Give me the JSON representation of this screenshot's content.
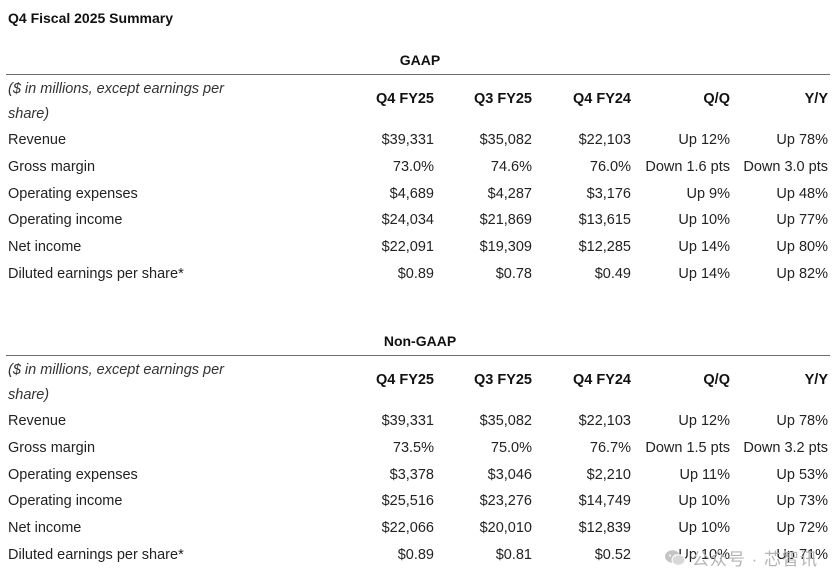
{
  "page_title": "Q4 Fiscal 2025 Summary",
  "columns": [
    "Q4 FY25",
    "Q3 FY25",
    "Q4 FY24",
    "Q/Q",
    "Y/Y"
  ],
  "sections": [
    {
      "title": "GAAP",
      "header_label": "($ in millions, except earnings per share)",
      "rows": [
        {
          "label": "Revenue",
          "values": [
            "$39,331",
            "$35,082",
            "$22,103",
            "Up 12%",
            "Up 78%"
          ]
        },
        {
          "label": "Gross margin",
          "values": [
            "73.0%",
            "74.6%",
            "76.0%",
            "Down 1.6 pts",
            "Down 3.0 pts"
          ]
        },
        {
          "label": "Operating expenses",
          "values": [
            "$4,689",
            "$4,287",
            "$3,176",
            "Up 9%",
            "Up 48%"
          ]
        },
        {
          "label": "Operating income",
          "values": [
            "$24,034",
            "$21,869",
            "$13,615",
            "Up 10%",
            "Up 77%"
          ]
        },
        {
          "label": "Net income",
          "values": [
            "$22,091",
            "$19,309",
            "$12,285",
            "Up 14%",
            "Up 80%"
          ]
        },
        {
          "label": "Diluted earnings per share*",
          "values": [
            "$0.89",
            "$0.78",
            "$0.49",
            "Up 14%",
            "Up 82%"
          ]
        }
      ]
    },
    {
      "title": "Non-GAAP",
      "header_label": "($ in millions, except earnings per share)",
      "rows": [
        {
          "label": "Revenue",
          "values": [
            "$39,331",
            "$35,082",
            "$22,103",
            "Up 12%",
            "Up 78%"
          ]
        },
        {
          "label": "Gross margin",
          "values": [
            "73.5%",
            "75.0%",
            "76.7%",
            "Down 1.5 pts",
            "Down 3.2 pts"
          ]
        },
        {
          "label": "Operating expenses",
          "values": [
            "$3,378",
            "$3,046",
            "$2,210",
            "Up 11%",
            "Up 53%"
          ]
        },
        {
          "label": "Operating income",
          "values": [
            "$25,516",
            "$23,276",
            "$14,749",
            "Up 10%",
            "Up 73%"
          ]
        },
        {
          "label": "Net income",
          "values": [
            "$22,066",
            "$20,010",
            "$12,839",
            "Up 10%",
            "Up 72%"
          ]
        },
        {
          "label": "Diluted earnings per share*",
          "values": [
            "$0.89",
            "$0.81",
            "$0.52",
            "Up 10%",
            "Up 71%"
          ]
        }
      ]
    }
  ],
  "watermark": {
    "text": "公众号 · 芯智讯",
    "icon": "wechat-icon"
  }
}
